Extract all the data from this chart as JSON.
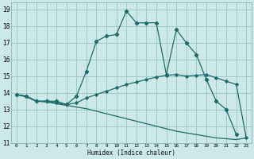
{
  "xlabel": "Humidex (Indice chaleur)",
  "bg_color": "#cce8e8",
  "grid_color": "#9dcaca",
  "line_color": "#1e6b6b",
  "xlim": [
    -0.5,
    23.5
  ],
  "ylim": [
    11,
    19.4
  ],
  "yticks": [
    11,
    12,
    13,
    14,
    15,
    16,
    17,
    18,
    19
  ],
  "xticks": [
    0,
    1,
    2,
    3,
    4,
    5,
    6,
    7,
    8,
    9,
    10,
    11,
    12,
    13,
    14,
    15,
    16,
    17,
    18,
    19,
    20,
    21,
    22,
    23
  ],
  "curve1_x": [
    0,
    1,
    2,
    3,
    4,
    5,
    6,
    7,
    8,
    9,
    10,
    11,
    12,
    13,
    14,
    15,
    16,
    17,
    18,
    19,
    20,
    21,
    22
  ],
  "curve1_y": [
    13.9,
    13.8,
    13.5,
    13.5,
    13.5,
    13.3,
    13.8,
    15.3,
    17.1,
    17.4,
    17.5,
    18.9,
    18.2,
    18.2,
    18.2,
    15.1,
    17.8,
    17.0,
    16.3,
    14.8,
    13.5,
    13.0,
    11.5
  ],
  "curve2_x": [
    0,
    1,
    2,
    3,
    4,
    5,
    6,
    7,
    8,
    9,
    10,
    11,
    12,
    13,
    14,
    15,
    16,
    17,
    18,
    19,
    20,
    21,
    22,
    23
  ],
  "curve2_y": [
    13.9,
    13.8,
    13.5,
    13.5,
    13.4,
    13.3,
    13.4,
    13.7,
    13.9,
    14.1,
    14.3,
    14.5,
    14.65,
    14.8,
    14.95,
    15.05,
    15.1,
    15.0,
    15.05,
    15.1,
    14.9,
    14.7,
    14.5,
    11.3
  ],
  "curve3_x": [
    0,
    1,
    2,
    3,
    4,
    5,
    6,
    7,
    8,
    9,
    10,
    11,
    12,
    13,
    14,
    15,
    16,
    17,
    18,
    19,
    20,
    21,
    22,
    23
  ],
  "curve3_y": [
    13.9,
    13.75,
    13.5,
    13.45,
    13.35,
    13.25,
    13.15,
    13.05,
    12.9,
    12.75,
    12.6,
    12.45,
    12.3,
    12.15,
    12.0,
    11.85,
    11.7,
    11.6,
    11.5,
    11.4,
    11.3,
    11.25,
    11.2,
    11.3
  ]
}
